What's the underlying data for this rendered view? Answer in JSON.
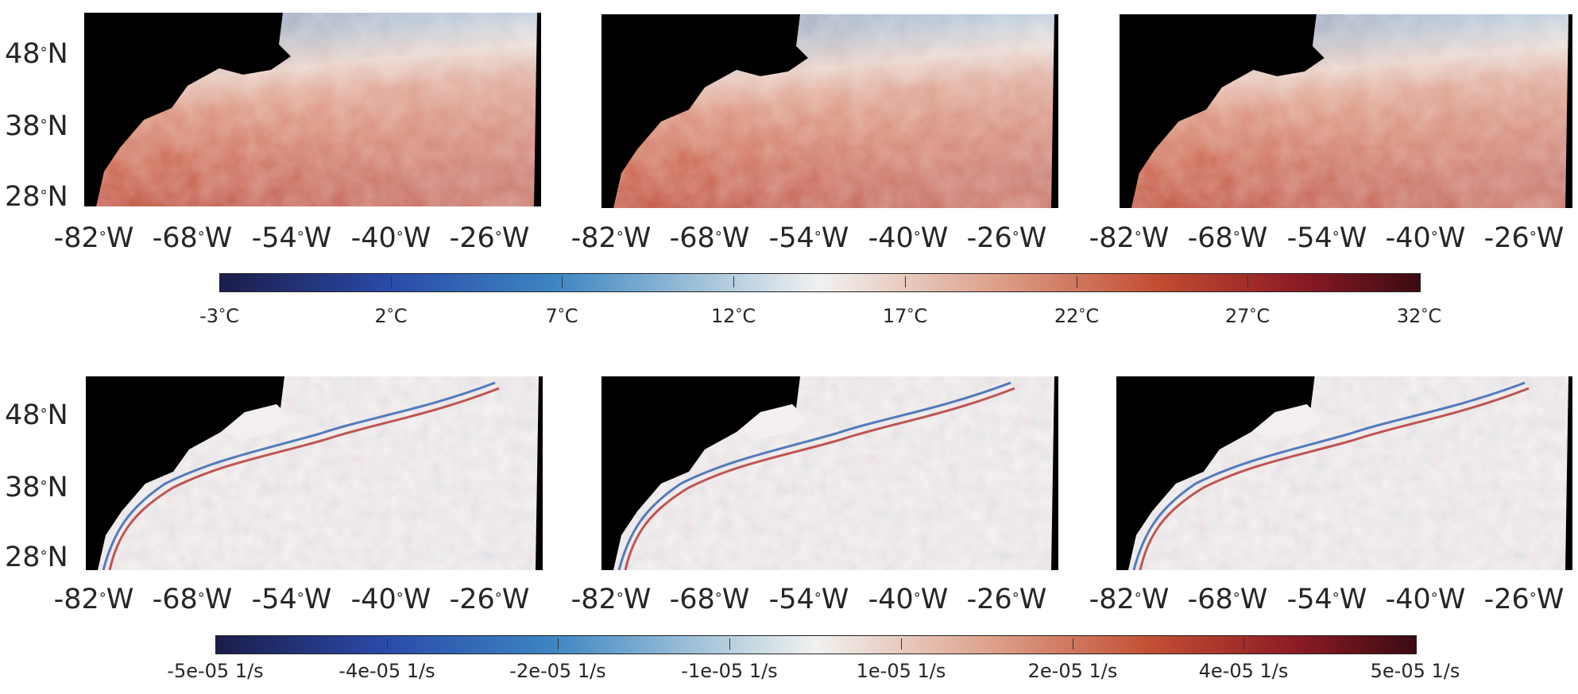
{
  "latitude_labels": [
    {
      "deg": "48",
      "hemi": "N"
    },
    {
      "deg": "38",
      "hemi": "N"
    },
    {
      "deg": "28",
      "hemi": "N"
    }
  ],
  "longitude_labels": [
    {
      "deg": "-82",
      "hemi": "W"
    },
    {
      "deg": "-68",
      "hemi": "W"
    },
    {
      "deg": "-54",
      "hemi": "W"
    },
    {
      "deg": "-40",
      "hemi": "W"
    },
    {
      "deg": "-26",
      "hemi": "W"
    }
  ],
  "degree_symbol": "°",
  "temperature_colorbar": {
    "ticks": [
      {
        "value": "-3",
        "unit": "C"
      },
      {
        "value": "2",
        "unit": "C"
      },
      {
        "value": "7",
        "unit": "C"
      },
      {
        "value": "12",
        "unit": "C"
      },
      {
        "value": "17",
        "unit": "C"
      },
      {
        "value": "22",
        "unit": "C"
      },
      {
        "value": "27",
        "unit": "C"
      },
      {
        "value": "32",
        "unit": "C"
      }
    ]
  },
  "vorticity_colorbar": {
    "ticks": [
      "-5e-05 1/s",
      "-4e-05 1/s",
      "-2e-05 1/s",
      "-1e-05 1/s",
      "1e-05 1/s",
      "2e-05 1/s",
      "4e-05 1/s",
      "5e-05 1/s"
    ]
  },
  "colors": {
    "land": "#000000",
    "cold": "#1a5fb4",
    "warm": "#b33a2a",
    "neutral": "#f2f0ef"
  }
}
